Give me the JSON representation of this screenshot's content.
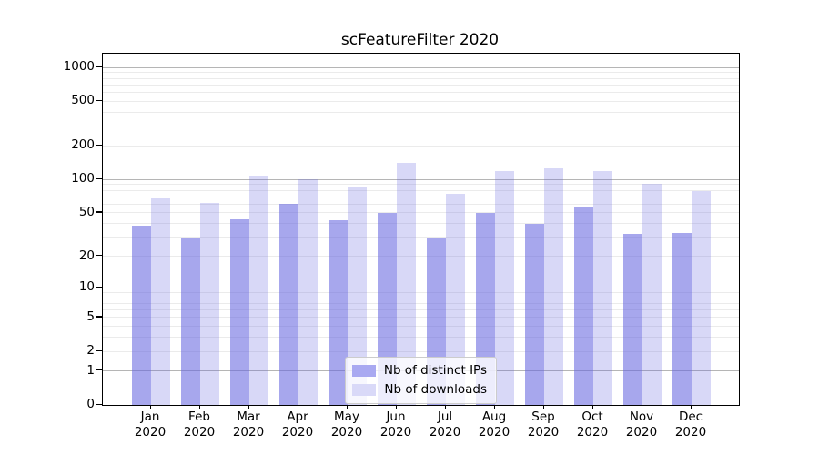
{
  "chart": {
    "title": "scFeatureFilter 2020"
  },
  "chart_data": {
    "type": "bar",
    "title": "scFeatureFilter 2020",
    "categories": [
      "Jan",
      "Feb",
      "Mar",
      "Apr",
      "May",
      "Jun",
      "Jul",
      "Aug",
      "Sep",
      "Oct",
      "Nov",
      "Dec"
    ],
    "category_year": "2020",
    "series": [
      {
        "name": "Nb of distinct IPs",
        "color": "rgba(101,101,224,0.57)",
        "values": [
          38,
          29,
          44,
          60,
          43,
          50,
          30,
          50,
          40,
          56,
          32,
          33
        ]
      },
      {
        "name": "Nb of downloads",
        "color": "rgba(101,101,224,0.25)",
        "values": [
          68,
          61,
          108,
          101,
          87,
          140,
          74,
          120,
          127,
          120,
          91,
          78
        ]
      }
    ],
    "yscale": "log1p",
    "ylim": [
      0,
      1320
    ],
    "ytick_values": [
      0,
      1,
      2,
      5,
      10,
      20,
      50,
      100,
      200,
      500,
      1000
    ],
    "ytick_labels": [
      "0",
      "1",
      "2",
      "5",
      "10",
      "20",
      "50",
      "100",
      "200",
      "500",
      "1000"
    ],
    "major_grid_values": [
      1,
      10,
      100,
      1000
    ],
    "minor_grid_values": [
      2,
      3,
      4,
      5,
      6,
      7,
      8,
      9,
      20,
      30,
      40,
      50,
      60,
      70,
      80,
      90,
      200,
      300,
      400,
      500,
      600,
      700,
      800,
      900
    ],
    "grid": true,
    "legend_position": "lower-center",
    "xlabel": "",
    "ylabel": ""
  },
  "legend": {
    "items": [
      {
        "label": "Nb of distinct IPs",
        "swatch_color": "#a9a9f1"
      },
      {
        "label": "Nb of downloads",
        "swatch_color": "#d9d9f8"
      }
    ]
  },
  "colors": {
    "bar_dark": "#a9a9f1",
    "bar_light": "#d9d9f8",
    "major_grid": "#b5b5b5",
    "minor_grid": "#ebebeb",
    "spine": "#000000"
  }
}
